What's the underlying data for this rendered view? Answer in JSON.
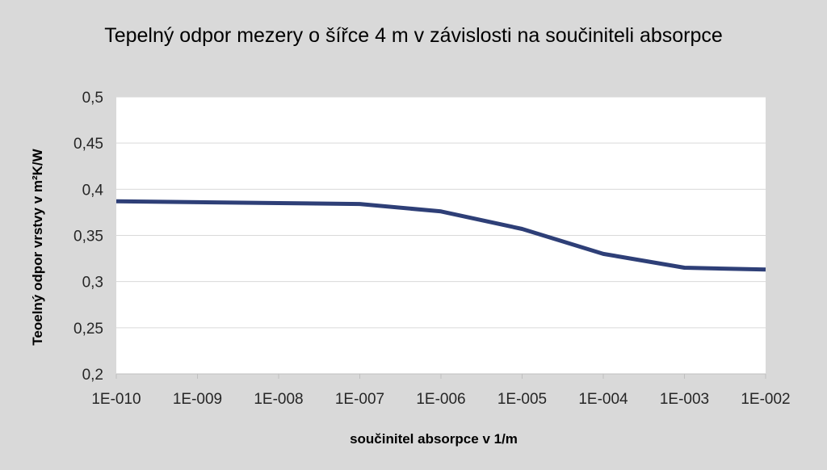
{
  "chart_data": {
    "type": "line",
    "title": "Tepelný odpor mezery o šířce 4 m v závislosti na součiniteli absorpce",
    "xlabel": "součinitel absorpce v 1/m",
    "ylabel": "Teoelný odpor vrstvy v m²K/W",
    "categories": [
      "1E-010",
      "1E-009",
      "1E-008",
      "1E-007",
      "1E-006",
      "1E-005",
      "1E-004",
      "1E-003",
      "1E-002"
    ],
    "series": [
      {
        "values": [
          0.387,
          0.386,
          0.385,
          0.384,
          0.376,
          0.357,
          0.33,
          0.315,
          0.313
        ]
      }
    ],
    "ylim": [
      0.2,
      0.5
    ],
    "yticks": [
      "0,2",
      "0,25",
      "0,3",
      "0,35",
      "0,4",
      "0,45",
      "0,5"
    ],
    "ytick_values": [
      0.2,
      0.25,
      0.3,
      0.35,
      0.4,
      0.45,
      0.5
    ],
    "grid": true,
    "line_color": "#2e3f77",
    "plot_background": "#ffffff",
    "figure_background": "#d9d9d9"
  }
}
